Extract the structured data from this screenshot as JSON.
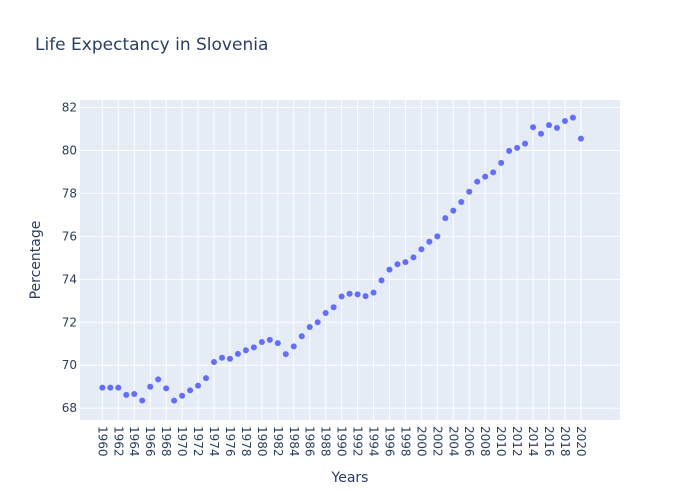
{
  "chart_data": {
    "type": "scatter",
    "title": "Life Expectancy in Slovenia",
    "xlabel": "Years",
    "ylabel": "Percentage",
    "x": [
      1960,
      1961,
      1962,
      1963,
      1964,
      1965,
      1966,
      1967,
      1968,
      1969,
      1970,
      1971,
      1972,
      1973,
      1974,
      1975,
      1976,
      1977,
      1978,
      1979,
      1980,
      1981,
      1982,
      1983,
      1984,
      1985,
      1986,
      1987,
      1988,
      1989,
      1990,
      1991,
      1992,
      1993,
      1994,
      1995,
      1996,
      1997,
      1998,
      1999,
      2000,
      2001,
      2002,
      2003,
      2004,
      2005,
      2006,
      2007,
      2008,
      2009,
      2010,
      2011,
      2012,
      2013,
      2014,
      2015,
      2016,
      2017,
      2018,
      2019,
      2020
    ],
    "y": [
      68.96,
      68.96,
      68.96,
      68.62,
      68.66,
      68.36,
      69.0,
      69.34,
      68.92,
      68.35,
      68.58,
      68.83,
      69.05,
      69.4,
      70.15,
      70.35,
      70.3,
      70.53,
      70.7,
      70.83,
      71.08,
      71.18,
      71.03,
      70.52,
      70.88,
      71.35,
      71.78,
      72.0,
      72.43,
      72.7,
      73.2,
      73.33,
      73.3,
      73.22,
      73.38,
      73.95,
      74.45,
      74.7,
      74.8,
      75.02,
      75.4,
      75.75,
      76.0,
      76.85,
      77.2,
      77.6,
      78.08,
      78.55,
      78.78,
      78.98,
      79.42,
      79.98,
      80.12,
      80.32,
      81.08,
      80.78,
      81.18,
      81.05,
      81.37,
      81.53,
      80.55
    ],
    "xticks": [
      "1960",
      "1962",
      "1964",
      "1966",
      "1968",
      "1970",
      "1972",
      "1974",
      "1976",
      "1978",
      "1980",
      "1982",
      "1984",
      "1986",
      "1988",
      "1990",
      "1992",
      "1994",
      "1996",
      "1998",
      "2000",
      "2002",
      "2004",
      "2006",
      "2008",
      "2010",
      "2012",
      "2014",
      "2016",
      "2018",
      "2020"
    ],
    "yticks": [
      "68",
      "70",
      "72",
      "74",
      "76",
      "78",
      "80",
      "82"
    ],
    "xlim": [
      1957.2,
      2024.9
    ],
    "ylim": [
      67.45,
      82.35
    ],
    "grid": true,
    "legend": "none",
    "colors": {
      "marker": "#636efa",
      "plot_bg": "#e5ecf6",
      "text": "#2a3f5f"
    }
  }
}
